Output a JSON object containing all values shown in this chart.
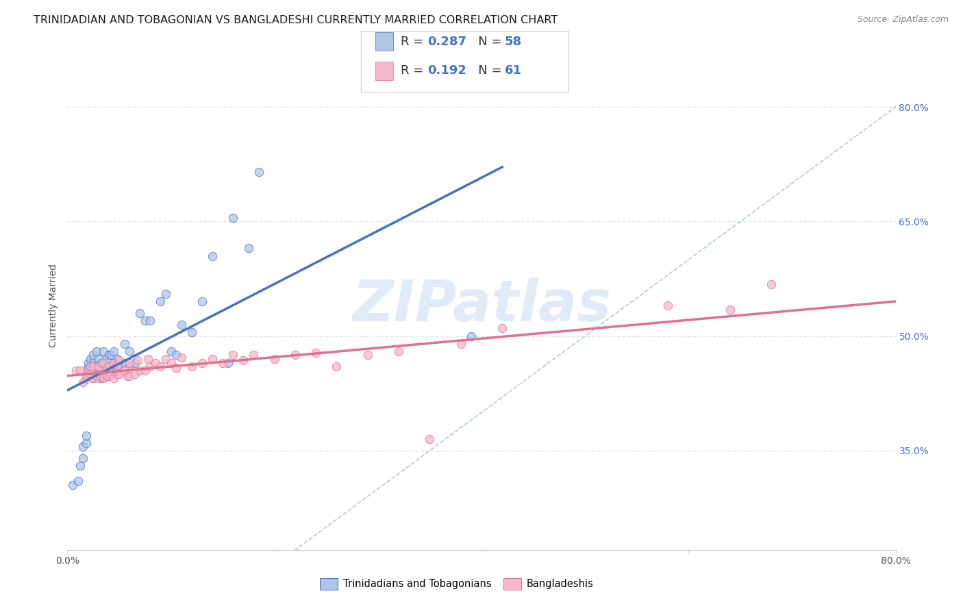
{
  "title": "TRINIDADIAN AND TOBAGONIAN VS BANGLADESHI CURRENTLY MARRIED CORRELATION CHART",
  "source": "Source: ZipAtlas.com",
  "ylabel": "Currently Married",
  "xlim": [
    0.0,
    0.8
  ],
  "ylim": [
    0.22,
    0.86
  ],
  "xticks": [
    0.0,
    0.2,
    0.4,
    0.6,
    0.8
  ],
  "yticks": [
    0.35,
    0.5,
    0.65,
    0.8
  ],
  "watermark": "ZIPatlas",
  "legend_R1": "0.287",
  "legend_N1": "58",
  "legend_R2": "0.192",
  "legend_N2": "61",
  "color_blue": "#aec6e8",
  "color_pink": "#f4b8c8",
  "color_blue_dark": "#4472c4",
  "color_pink_dark": "#e07090",
  "color_line_blue": "#4472c4",
  "color_line_pink": "#e07090",
  "color_diagonal": "#b0c8e8",
  "trinidadian_x": [
    0.005,
    0.01,
    0.012,
    0.015,
    0.015,
    0.018,
    0.018,
    0.018,
    0.02,
    0.02,
    0.02,
    0.022,
    0.022,
    0.025,
    0.025,
    0.025,
    0.025,
    0.028,
    0.028,
    0.03,
    0.03,
    0.03,
    0.033,
    0.033,
    0.035,
    0.035,
    0.038,
    0.038,
    0.04,
    0.04,
    0.042,
    0.042,
    0.045,
    0.045,
    0.048,
    0.048,
    0.05,
    0.055,
    0.055,
    0.06,
    0.06,
    0.065,
    0.07,
    0.075,
    0.08,
    0.09,
    0.095,
    0.1,
    0.105,
    0.11,
    0.12,
    0.13,
    0.14,
    0.155,
    0.16,
    0.175,
    0.185,
    0.39
  ],
  "trinidadian_y": [
    0.305,
    0.31,
    0.33,
    0.34,
    0.355,
    0.36,
    0.37,
    0.45,
    0.455,
    0.46,
    0.465,
    0.46,
    0.47,
    0.445,
    0.455,
    0.465,
    0.475,
    0.46,
    0.48,
    0.45,
    0.46,
    0.47,
    0.445,
    0.465,
    0.455,
    0.48,
    0.45,
    0.47,
    0.455,
    0.475,
    0.46,
    0.475,
    0.465,
    0.48,
    0.455,
    0.47,
    0.46,
    0.465,
    0.49,
    0.46,
    0.48,
    0.465,
    0.53,
    0.52,
    0.52,
    0.545,
    0.555,
    0.48,
    0.475,
    0.515,
    0.505,
    0.545,
    0.605,
    0.465,
    0.655,
    0.615,
    0.715,
    0.5
  ],
  "bangladeshi_x": [
    0.008,
    0.012,
    0.015,
    0.018,
    0.02,
    0.022,
    0.022,
    0.025,
    0.025,
    0.028,
    0.03,
    0.03,
    0.032,
    0.035,
    0.035,
    0.038,
    0.038,
    0.04,
    0.04,
    0.042,
    0.045,
    0.045,
    0.048,
    0.048,
    0.05,
    0.05,
    0.055,
    0.058,
    0.06,
    0.06,
    0.065,
    0.068,
    0.07,
    0.075,
    0.078,
    0.08,
    0.085,
    0.09,
    0.095,
    0.1,
    0.105,
    0.11,
    0.12,
    0.13,
    0.14,
    0.15,
    0.16,
    0.17,
    0.18,
    0.2,
    0.22,
    0.24,
    0.26,
    0.29,
    0.32,
    0.35,
    0.38,
    0.42,
    0.58,
    0.64,
    0.68
  ],
  "bangladeshi_y": [
    0.455,
    0.455,
    0.44,
    0.445,
    0.455,
    0.45,
    0.46,
    0.445,
    0.46,
    0.448,
    0.445,
    0.46,
    0.448,
    0.445,
    0.465,
    0.448,
    0.458,
    0.448,
    0.46,
    0.45,
    0.445,
    0.465,
    0.45,
    0.462,
    0.45,
    0.468,
    0.455,
    0.448,
    0.448,
    0.465,
    0.45,
    0.468,
    0.455,
    0.455,
    0.47,
    0.46,
    0.465,
    0.46,
    0.47,
    0.465,
    0.458,
    0.472,
    0.46,
    0.465,
    0.47,
    0.465,
    0.475,
    0.468,
    0.475,
    0.47,
    0.475,
    0.478,
    0.46,
    0.475,
    0.48,
    0.365,
    0.49,
    0.51,
    0.54,
    0.535,
    0.568
  ],
  "background_color": "#ffffff",
  "grid_color": "#dde5f0",
  "title_fontsize": 11.5,
  "axis_label_fontsize": 10,
  "tick_fontsize": 10,
  "legend_fontsize": 13,
  "watermark_color": "#c5d8f0",
  "watermark_fontsize": 60
}
